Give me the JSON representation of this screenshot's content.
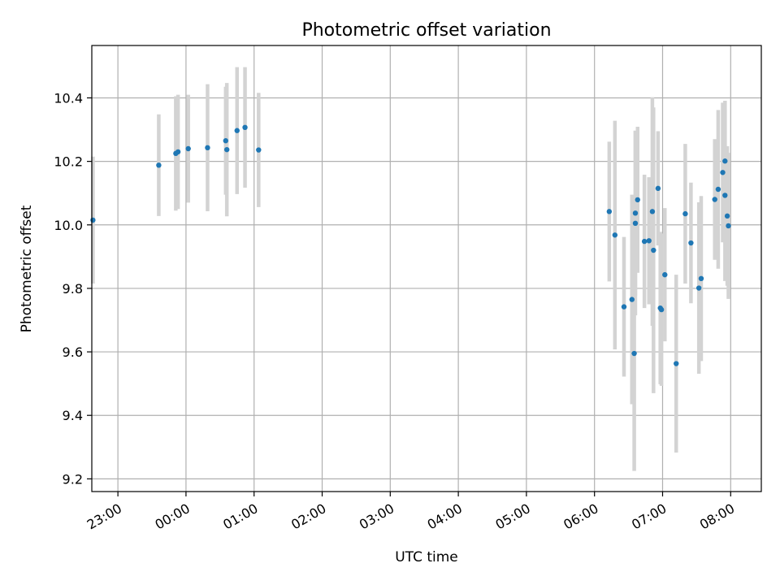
{
  "chart_data": {
    "type": "scatter",
    "title": "Photometric offset variation",
    "xlabel": "UTC time",
    "ylabel": "Photometric offset",
    "xlim": [
      "22:37",
      "08:27"
    ],
    "ylim": [
      9.16,
      10.565
    ],
    "grid": true,
    "legend": "none",
    "colors": {
      "marker": "#1f77b4",
      "errorbar": "#d3d3d3"
    },
    "x_ticks": [
      "23:00",
      "00:00",
      "01:00",
      "02:00",
      "03:00",
      "04:00",
      "05:00",
      "06:00",
      "07:00",
      "08:00"
    ],
    "y_ticks": [
      "9.2",
      "9.4",
      "9.6",
      "9.8",
      "10.0",
      "10.2",
      "10.4"
    ],
    "points": [
      {
        "x": "22:38",
        "y": 10.015,
        "err": 0.2
      },
      {
        "x": "23:36",
        "y": 10.188,
        "err": 0.16
      },
      {
        "x": "23:51",
        "y": 10.225,
        "err": 0.18
      },
      {
        "x": "23:53",
        "y": 10.23,
        "err": 0.18
      },
      {
        "x": "00:02",
        "y": 10.24,
        "err": 0.17
      },
      {
        "x": "00:19",
        "y": 10.243,
        "err": 0.2
      },
      {
        "x": "00:35",
        "y": 10.265,
        "err": 0.17
      },
      {
        "x": "00:36",
        "y": 10.237,
        "err": 0.21
      },
      {
        "x": "00:45",
        "y": 10.297,
        "err": 0.2
      },
      {
        "x": "00:52",
        "y": 10.307,
        "err": 0.19
      },
      {
        "x": "01:04",
        "y": 10.236,
        "err": 0.18
      },
      {
        "x": "06:13",
        "y": 10.042,
        "err": 0.22
      },
      {
        "x": "06:18",
        "y": 9.968,
        "err": 0.36
      },
      {
        "x": "06:26",
        "y": 9.742,
        "err": 0.22
      },
      {
        "x": "06:33",
        "y": 9.765,
        "err": 0.33
      },
      {
        "x": "06:35",
        "y": 9.595,
        "err": 0.37
      },
      {
        "x": "06:36",
        "y": 10.037,
        "err": 0.26
      },
      {
        "x": "06:36",
        "y": 10.005,
        "err": 0.29
      },
      {
        "x": "06:38",
        "y": 10.079,
        "err": 0.23
      },
      {
        "x": "06:44",
        "y": 9.948,
        "err": 0.21
      },
      {
        "x": "06:48",
        "y": 9.95,
        "err": 0.2
      },
      {
        "x": "06:51",
        "y": 10.042,
        "err": 0.36
      },
      {
        "x": "06:52",
        "y": 9.92,
        "err": 0.45
      },
      {
        "x": "06:56",
        "y": 10.115,
        "err": 0.18
      },
      {
        "x": "06:58",
        "y": 9.738,
        "err": 0.24
      },
      {
        "x": "06:59",
        "y": 9.733,
        "err": 0.24
      },
      {
        "x": "07:02",
        "y": 9.843,
        "err": 0.21
      },
      {
        "x": "07:12",
        "y": 9.563,
        "err": 0.28
      },
      {
        "x": "07:20",
        "y": 10.035,
        "err": 0.22
      },
      {
        "x": "07:25",
        "y": 9.943,
        "err": 0.19
      },
      {
        "x": "07:32",
        "y": 9.801,
        "err": 0.27
      },
      {
        "x": "07:34",
        "y": 9.831,
        "err": 0.26
      },
      {
        "x": "07:46",
        "y": 10.08,
        "err": 0.19
      },
      {
        "x": "07:49",
        "y": 10.112,
        "err": 0.25
      },
      {
        "x": "07:53",
        "y": 10.165,
        "err": 0.22
      },
      {
        "x": "07:55",
        "y": 10.201,
        "err": 0.19
      },
      {
        "x": "07:55",
        "y": 10.093,
        "err": 0.27
      },
      {
        "x": "07:57",
        "y": 10.028,
        "err": 0.22
      },
      {
        "x": "07:58",
        "y": 9.997,
        "err": 0.23
      }
    ]
  }
}
